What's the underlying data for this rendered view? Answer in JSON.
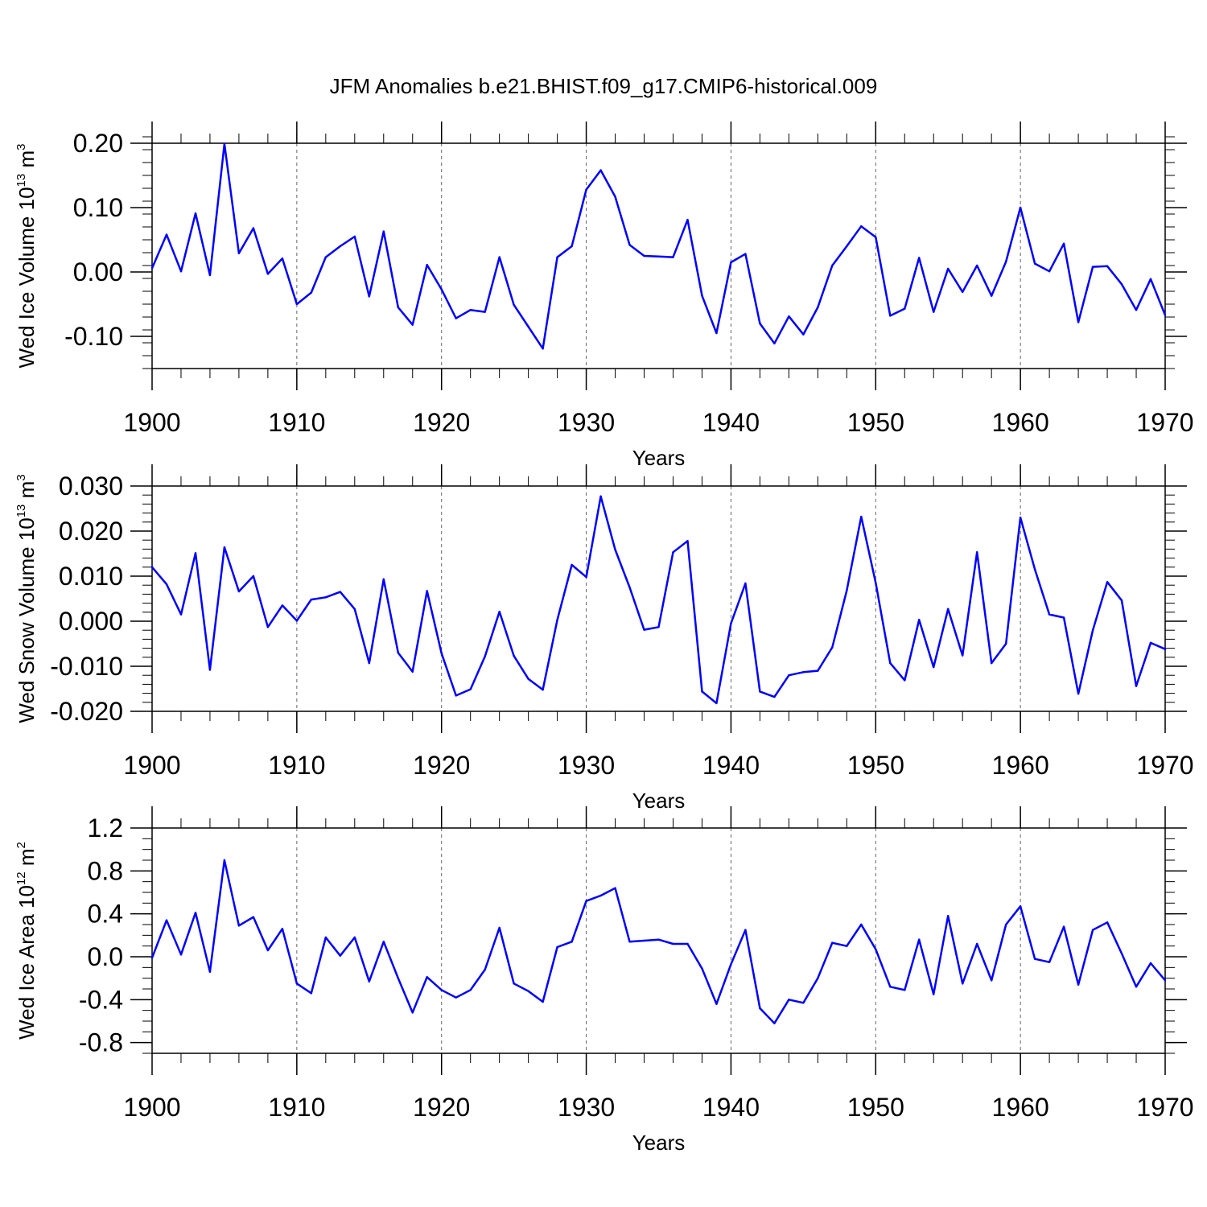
{
  "chart_data": [
    {
      "type": "line",
      "title": "JFM Anomalies b.e21.BHIST.f09_g17.CMIP6-historical.009",
      "xlabel": "Years",
      "ylabel_text": "Wed Ice Volume 10",
      "ylabel_exp": "13",
      "ylabel_unit": " m",
      "ylabel_unit_exp": "3",
      "xlim": [
        1900,
        1970
      ],
      "ylim": [
        -0.15,
        0.2
      ],
      "yticks": [
        -0.1,
        0.0,
        0.1,
        0.2
      ],
      "ytick_labels": [
        "-0.10",
        "0.00",
        "0.10",
        "0.20"
      ],
      "yminor_step": 0.02,
      "xticks": [
        1900,
        1910,
        1920,
        1930,
        1940,
        1950,
        1960,
        1970
      ],
      "xtick_labels": [
        "1900",
        "1910",
        "1920",
        "1930",
        "1940",
        "1950",
        "1960",
        "1970"
      ],
      "grid": "vertical dashed at major x ticks",
      "line_color": "#0000ff",
      "x": [
        1900,
        1901,
        1902,
        1903,
        1904,
        1905,
        1906,
        1907,
        1908,
        1909,
        1910,
        1911,
        1912,
        1913,
        1914,
        1915,
        1916,
        1917,
        1918,
        1919,
        1920,
        1921,
        1922,
        1923,
        1924,
        1925,
        1926,
        1927,
        1928,
        1929,
        1930,
        1931,
        1932,
        1933,
        1934,
        1935,
        1936,
        1937,
        1938,
        1939,
        1940,
        1941,
        1942,
        1943,
        1944,
        1945,
        1946,
        1947,
        1948,
        1949,
        1950,
        1951,
        1952,
        1953,
        1954,
        1955,
        1956,
        1957,
        1958,
        1959,
        1960,
        1961,
        1962,
        1963,
        1964,
        1965,
        1966,
        1967,
        1968,
        1969,
        1970
      ],
      "values": [
        0.006,
        0.058,
        0.001,
        0.091,
        -0.005,
        0.199,
        0.029,
        0.068,
        -0.003,
        0.021,
        -0.05,
        -0.032,
        0.023,
        0.04,
        0.055,
        -0.038,
        0.063,
        -0.055,
        -0.082,
        0.011,
        -0.027,
        -0.072,
        -0.059,
        -0.062,
        0.023,
        -0.051,
        -0.085,
        -0.119,
        0.023,
        0.04,
        0.128,
        0.158,
        0.117,
        0.042,
        0.025,
        0.024,
        0.023,
        0.081,
        -0.037,
        -0.095,
        0.015,
        0.028,
        -0.08,
        -0.111,
        -0.069,
        -0.097,
        -0.055,
        0.01,
        0.04,
        0.071,
        0.054,
        -0.068,
        -0.057,
        0.022,
        -0.062,
        0.005,
        -0.031,
        0.01,
        -0.037,
        0.016,
        0.1,
        0.013,
        0.001,
        0.044,
        -0.078,
        0.008,
        0.009,
        -0.019,
        -0.059,
        -0.011,
        -0.067
      ]
    },
    {
      "type": "line",
      "title": "",
      "xlabel": "Years",
      "ylabel_text": "Wed Snow Volume 10",
      "ylabel_exp": "13",
      "ylabel_unit": " m",
      "ylabel_unit_exp": "3",
      "xlim": [
        1900,
        1970
      ],
      "ylim": [
        -0.02,
        0.03
      ],
      "yticks": [
        -0.02,
        -0.01,
        0.0,
        0.01,
        0.02,
        0.03
      ],
      "ytick_labels": [
        "-0.020",
        "-0.010",
        "0.000",
        "0.010",
        "0.020",
        "0.030"
      ],
      "yminor_step": 0.002,
      "xticks": [
        1900,
        1910,
        1920,
        1930,
        1940,
        1950,
        1960,
        1970
      ],
      "xtick_labels": [
        "1900",
        "1910",
        "1920",
        "1930",
        "1940",
        "1950",
        "1960",
        "1970"
      ],
      "grid": "vertical dashed at major x ticks",
      "line_color": "#0000ff",
      "x": [
        1900,
        1901,
        1902,
        1903,
        1904,
        1905,
        1906,
        1907,
        1908,
        1909,
        1910,
        1911,
        1912,
        1913,
        1914,
        1915,
        1916,
        1917,
        1918,
        1919,
        1920,
        1921,
        1922,
        1923,
        1924,
        1925,
        1926,
        1927,
        1928,
        1929,
        1930,
        1931,
        1932,
        1933,
        1934,
        1935,
        1936,
        1937,
        1938,
        1939,
        1940,
        1941,
        1942,
        1943,
        1944,
        1945,
        1946,
        1947,
        1948,
        1949,
        1950,
        1951,
        1952,
        1953,
        1954,
        1955,
        1956,
        1957,
        1958,
        1959,
        1960,
        1961,
        1962,
        1963,
        1964,
        1965,
        1966,
        1967,
        1968,
        1969,
        1970
      ],
      "values": [
        0.012,
        0.0082,
        0.0015,
        0.0151,
        -0.0108,
        0.0164,
        0.0066,
        0.01,
        -0.0013,
        0.0035,
        0.0001,
        0.0048,
        0.0053,
        0.0065,
        0.0027,
        -0.0093,
        0.0093,
        -0.007,
        -0.0112,
        0.0067,
        -0.0071,
        -0.0165,
        -0.0151,
        -0.0078,
        0.0021,
        -0.0077,
        -0.0128,
        -0.0152,
        0.0003,
        0.0125,
        0.0098,
        0.0277,
        0.0159,
        0.0075,
        -0.0019,
        -0.0013,
        0.0153,
        0.0178,
        -0.0156,
        -0.0182,
        -0.0005,
        0.0084,
        -0.0156,
        -0.0168,
        -0.012,
        -0.0113,
        -0.011,
        -0.0058,
        0.0068,
        0.0232,
        0.0085,
        -0.0093,
        -0.0131,
        0.0003,
        -0.0102,
        0.0027,
        -0.0076,
        0.0153,
        -0.0093,
        -0.005,
        0.023,
        0.0115,
        0.0015,
        0.0008,
        -0.0161,
        -0.002,
        0.0087,
        0.0046,
        -0.0144,
        -0.0048,
        -0.0062
      ]
    },
    {
      "type": "line",
      "title": "",
      "xlabel": "Years",
      "ylabel_text": "Wed Ice Area 10",
      "ylabel_exp": "12",
      "ylabel_unit": " m",
      "ylabel_unit_exp": "2",
      "xlim": [
        1900,
        1970
      ],
      "ylim": [
        -0.9,
        1.2
      ],
      "yticks": [
        -0.8,
        -0.4,
        0.0,
        0.4,
        0.8,
        1.2
      ],
      "ytick_labels": [
        "-0.8",
        "-0.4",
        "0.0",
        "0.4",
        "0.8",
        "1.2"
      ],
      "yminor_step": 0.1,
      "xticks": [
        1900,
        1910,
        1920,
        1930,
        1940,
        1950,
        1960,
        1970
      ],
      "xtick_labels": [
        "1900",
        "1910",
        "1920",
        "1930",
        "1940",
        "1950",
        "1960",
        "1970"
      ],
      "grid": "vertical dashed at major x ticks",
      "line_color": "#0000ff",
      "x": [
        1900,
        1901,
        1902,
        1903,
        1904,
        1905,
        1906,
        1907,
        1908,
        1909,
        1910,
        1911,
        1912,
        1913,
        1914,
        1915,
        1916,
        1917,
        1918,
        1919,
        1920,
        1921,
        1922,
        1923,
        1924,
        1925,
        1926,
        1927,
        1928,
        1929,
        1930,
        1931,
        1932,
        1933,
        1934,
        1935,
        1936,
        1937,
        1938,
        1939,
        1940,
        1941,
        1942,
        1943,
        1944,
        1945,
        1946,
        1947,
        1948,
        1949,
        1950,
        1951,
        1952,
        1953,
        1954,
        1955,
        1956,
        1957,
        1958,
        1959,
        1960,
        1961,
        1962,
        1963,
        1964,
        1965,
        1966,
        1967,
        1968,
        1969,
        1970
      ],
      "values": [
        -0.01,
        0.34,
        0.02,
        0.41,
        -0.14,
        0.9,
        0.29,
        0.37,
        0.06,
        0.26,
        -0.25,
        -0.34,
        0.18,
        0.01,
        0.18,
        -0.23,
        0.14,
        -0.2,
        -0.52,
        -0.19,
        -0.31,
        -0.38,
        -0.31,
        -0.12,
        0.27,
        -0.25,
        -0.32,
        -0.42,
        0.09,
        0.14,
        0.52,
        0.57,
        0.64,
        0.14,
        0.15,
        0.16,
        0.12,
        0.12,
        -0.11,
        -0.44,
        -0.07,
        0.25,
        -0.48,
        -0.62,
        -0.4,
        -0.43,
        -0.2,
        0.13,
        0.1,
        0.3,
        0.07,
        -0.28,
        -0.31,
        0.16,
        -0.35,
        0.38,
        -0.25,
        0.12,
        -0.22,
        0.3,
        0.47,
        -0.02,
        -0.05,
        0.28,
        -0.26,
        0.25,
        0.32,
        0.03,
        -0.28,
        -0.06,
        -0.22
      ]
    }
  ]
}
